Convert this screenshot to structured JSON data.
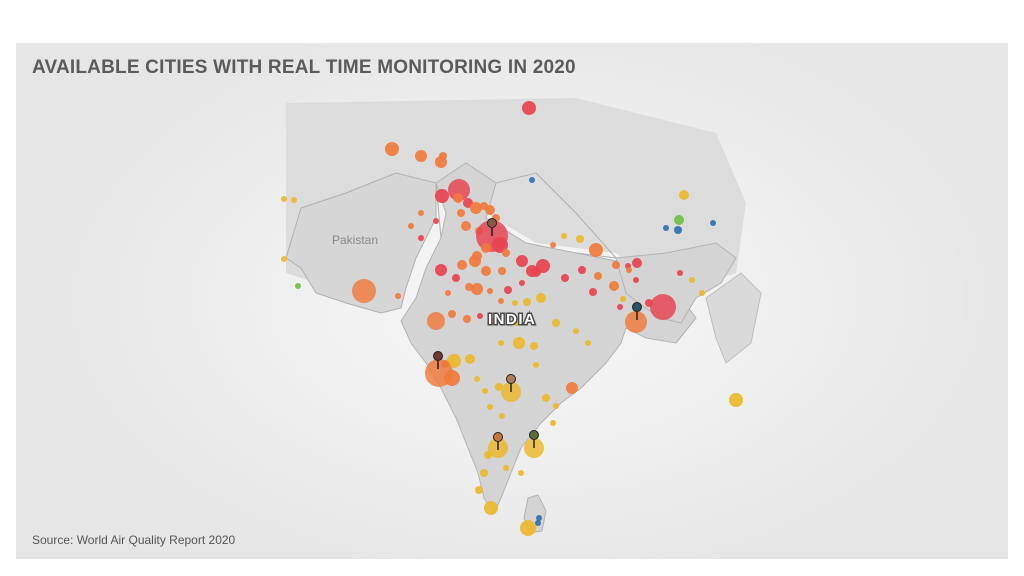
{
  "title": "AVAILABLE CITIES WITH REAL TIME MONITORING IN 2020",
  "source": "Source: World Air Quality Report 2020",
  "labels": {
    "india": "INDIA",
    "pakistan": "Pakistan"
  },
  "colors": {
    "red": "#e8424f",
    "orange": "#f07a3c",
    "light_orange": "#f39a45",
    "yellow": "#ecb82a",
    "blue": "#2f6fb3",
    "green": "#6fbf44",
    "land": "#d9d9d9",
    "border": "#b0b0b0"
  },
  "pin_marker_colors": [
    "#8a5a44",
    "#6b3a2a",
    "#b07a5c",
    "#2c5468",
    "#c7773a",
    "#5b6b3a"
  ]
}
